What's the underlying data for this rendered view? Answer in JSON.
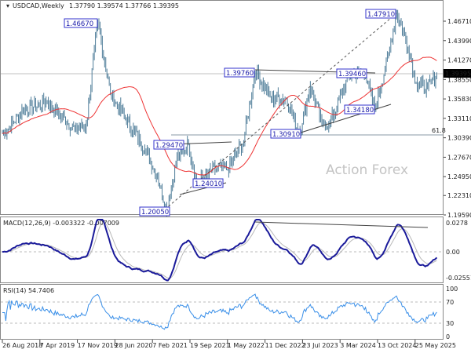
{
  "header": {
    "symbol": "USDCAD,Weekly",
    "ohlc": "1.37790 1.39574 1.37766 1.39395"
  },
  "watermark": "Action Forex",
  "colors": {
    "bars": "#4f7d99",
    "sma": "#ee3333",
    "macd": "#1a1a9a",
    "signal": "#b8b8b8",
    "rsi": "#3a8fe8",
    "labels": "#3333cc"
  },
  "chart_data": [
    {
      "type": "line",
      "title": "USDCAD,Weekly",
      "x_unit": "weeks since 26 Aug 2018",
      "x": [
        1,
        18,
        39,
        63,
        73,
        83,
        94,
        107,
        124,
        135,
        143,
        152,
        162,
        169,
        186,
        196,
        210,
        220,
        234,
        247,
        258,
        268,
        278,
        285,
        302,
        316,
        324,
        336,
        343,
        353,
        360,
        370,
        378
      ],
      "series": [
        {
          "name": "close (approx)",
          "values": [
            1.3101,
            1.343,
            1.354,
            1.3156,
            1.3211,
            1.4667,
            1.365,
            1.3321,
            1.2882,
            1.2497,
            1.2005,
            1.2772,
            1.2947,
            1.2401,
            1.2607,
            1.2607,
            1.2991,
            1.3976,
            1.3595,
            1.3595,
            1.3091,
            1.376,
            1.3233,
            1.3233,
            1.3924,
            1.3946,
            1.3418,
            1.4199,
            1.4791,
            1.4309,
            1.3815,
            1.374,
            1.39395
          ]
        }
      ],
      "overlay": "moving average (red)",
      "ylim": [
        1.1959,
        1.4671
      ],
      "yticks": [
        "1.46710",
        "1.43990",
        "1.41270",
        "1.38550",
        "1.35830",
        "1.33110",
        "1.30390",
        "1.27670",
        "1.24950",
        "1.22310",
        "1.19590"
      ],
      "current_price": "1.39395",
      "fib_label": "61.8",
      "fib_level": 1.3079,
      "annotations": [
        "1.46670",
        "1.39760",
        "1.39460",
        "1.47910",
        "1.34180",
        "1.30910",
        "1.29470",
        "1.24010",
        "1.20050"
      ],
      "xticks": [
        "26 Aug 2018",
        "7 Apr 2019",
        "17 Nov 2019",
        "28 Jun 2020",
        "7 Feb 2021",
        "19 Sep 2021",
        "1 May 2022",
        "11 Dec 2022",
        "23 Jul 2023",
        "3 Mar 2024",
        "13 Oct 2024",
        "25 May 2025"
      ]
    },
    {
      "type": "line",
      "title": "MACD(12,26,9) -0.003322 -0.007009",
      "series": [
        {
          "name": "MACD",
          "last": -0.003322
        },
        {
          "name": "Signal",
          "last": -0.007009
        }
      ],
      "yticks": [
        "0.0278",
        "0.00",
        "-0.025511"
      ],
      "ylim": [
        -0.025511,
        0.0278
      ]
    },
    {
      "type": "line",
      "title": "RSI(14) 54.7406",
      "series": [
        {
          "name": "RSI",
          "last": 54.7406
        }
      ],
      "yticks": [
        "100",
        "70",
        "30",
        "0"
      ],
      "levels": [
        70,
        30
      ],
      "ylim": [
        0,
        100
      ]
    }
  ]
}
